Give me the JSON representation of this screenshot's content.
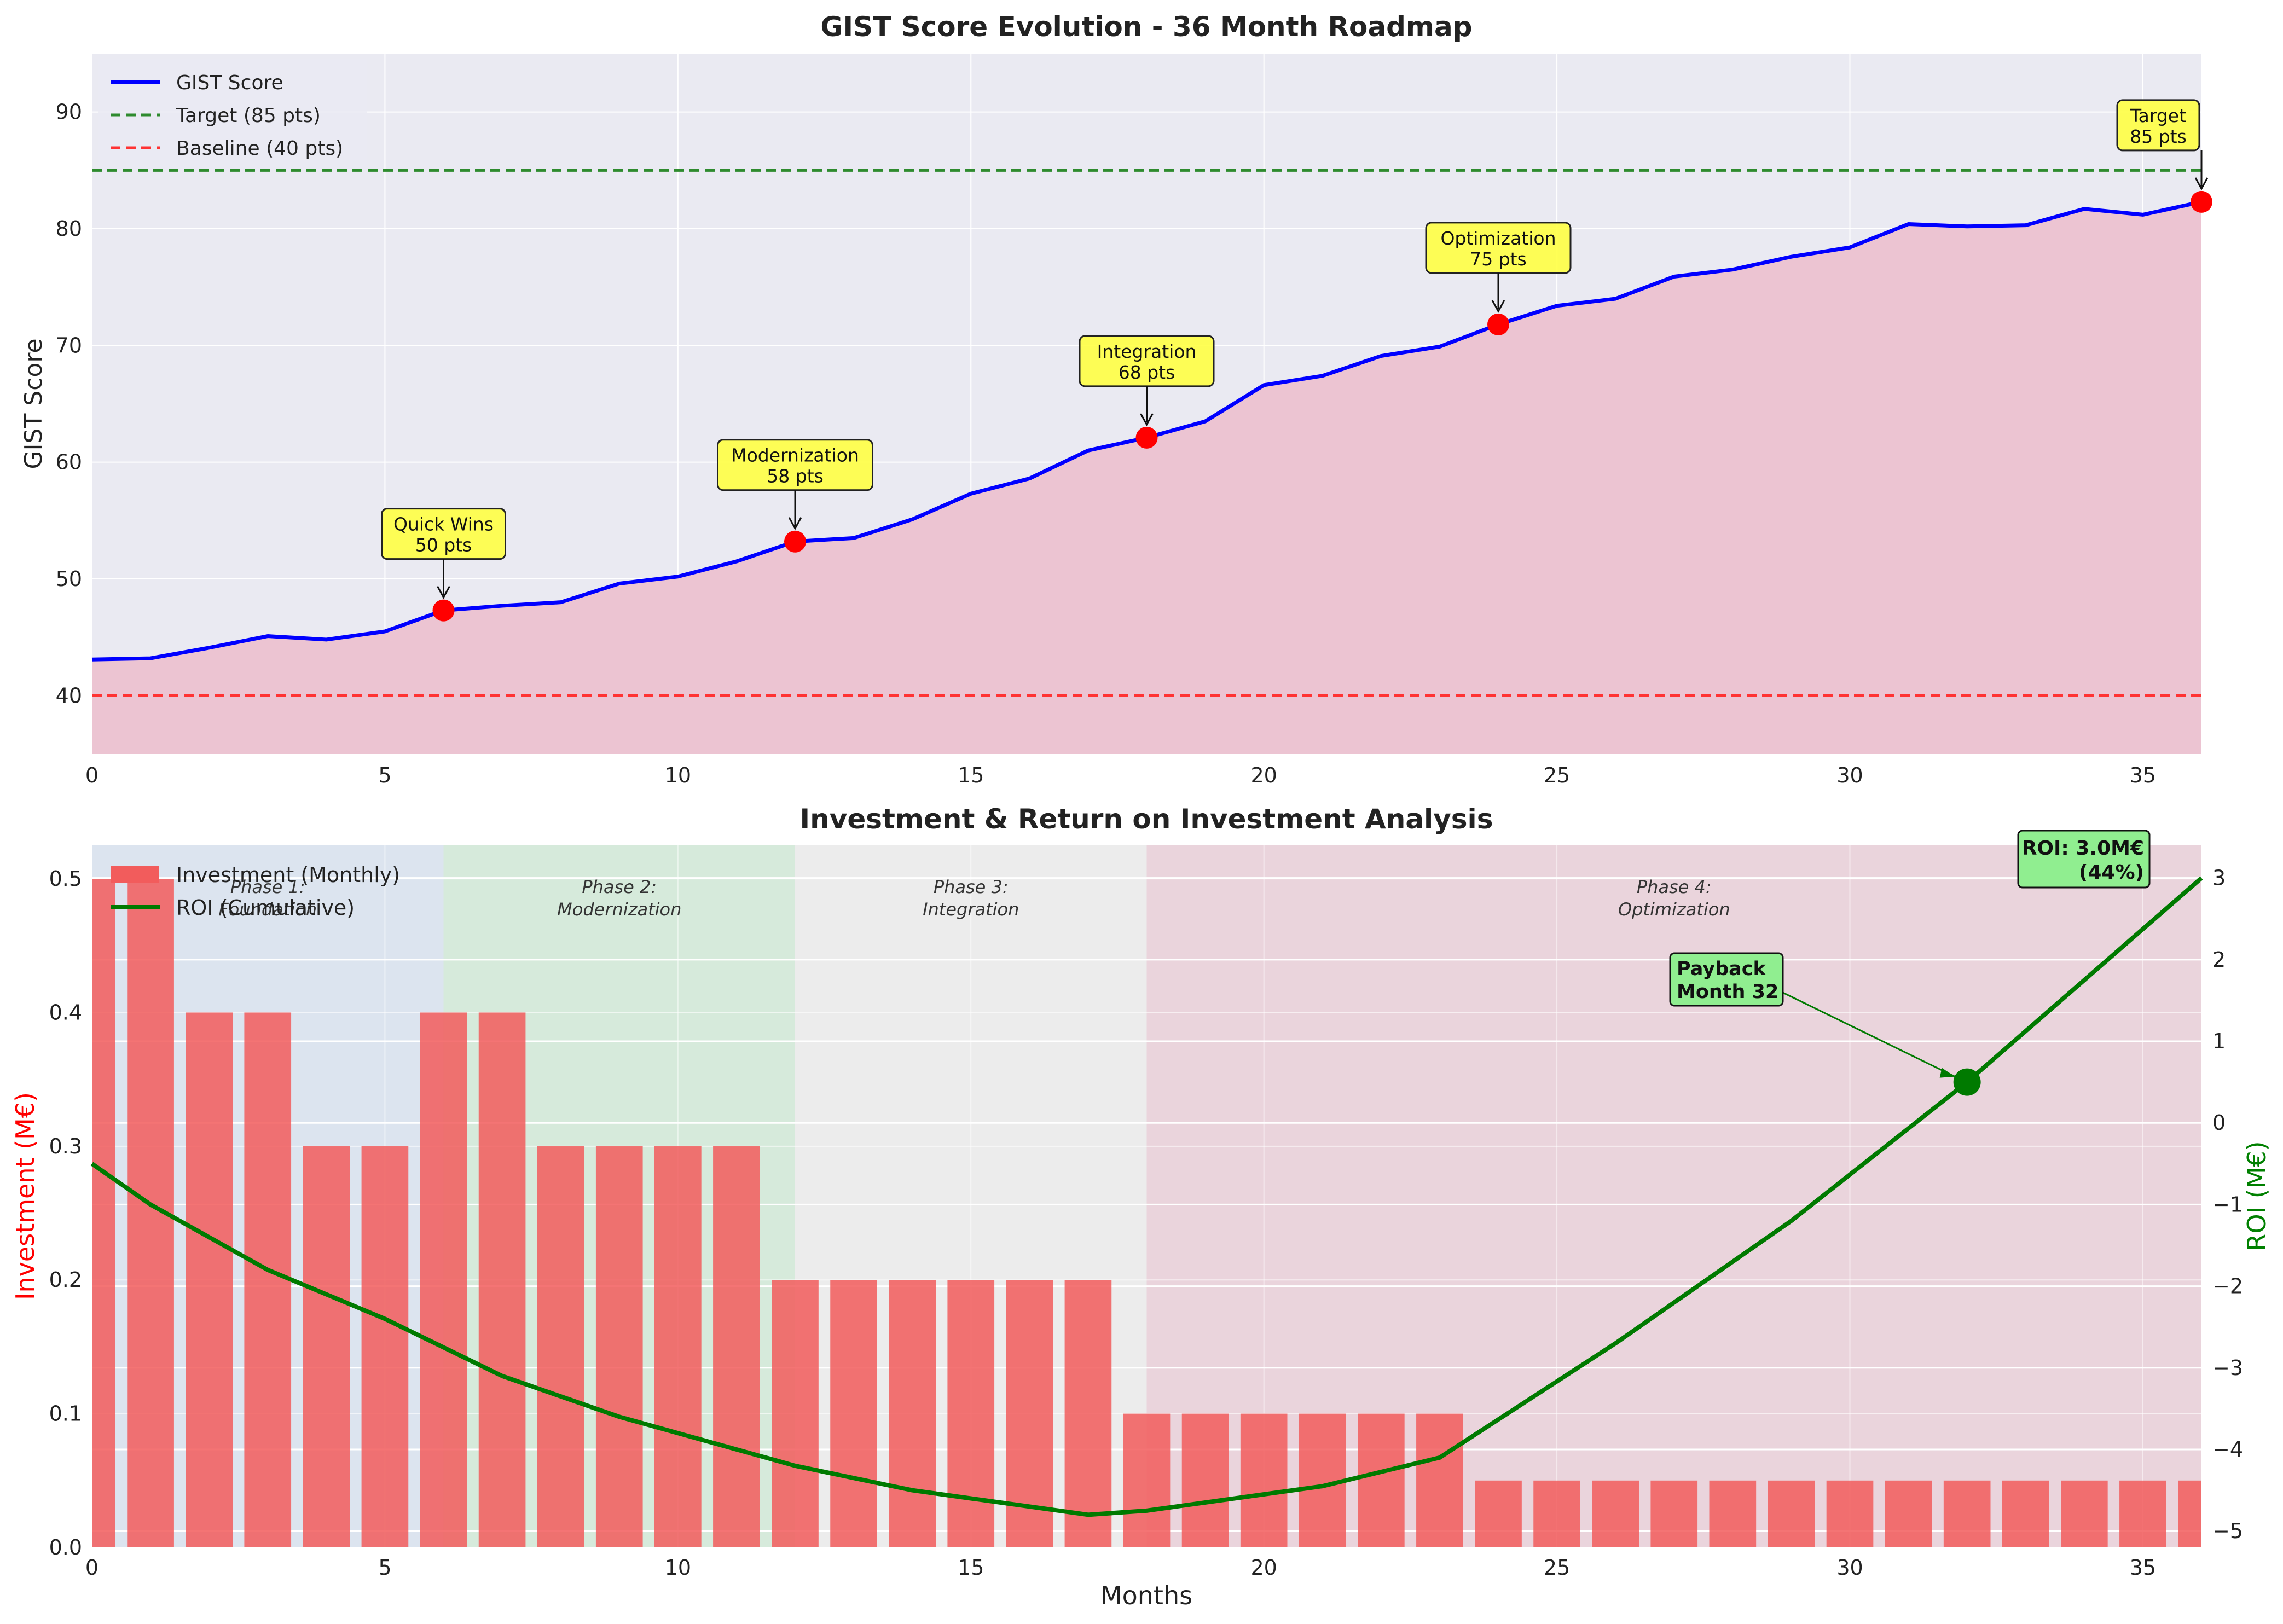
{
  "chart_data": [
    {
      "type": "line",
      "title": "GIST Score Evolution - 36 Month Roadmap",
      "xlabel": "",
      "ylabel": "GIST Score",
      "xlim": [
        0,
        36
      ],
      "ylim": [
        35,
        95
      ],
      "x_ticks": [
        "0",
        "5",
        "10",
        "15",
        "20",
        "25",
        "30",
        "35"
      ],
      "y_ticks": [
        "40",
        "50",
        "60",
        "70",
        "80",
        "90"
      ],
      "grid": true,
      "legend_position": "top-left",
      "x": [
        0,
        1,
        2,
        3,
        4,
        5,
        6,
        7,
        8,
        9,
        10,
        11,
        12,
        13,
        14,
        15,
        16,
        17,
        18,
        19,
        20,
        21,
        22,
        23,
        24,
        25,
        26,
        27,
        28,
        29,
        30,
        31,
        32,
        33,
        34,
        35,
        36
      ],
      "series": [
        {
          "name": "GIST Score",
          "color": "#0000ff",
          "values": [
            43.1,
            43.2,
            44.1,
            45.1,
            44.8,
            45.5,
            47.3,
            47.7,
            48.0,
            49.6,
            50.2,
            51.5,
            53.2,
            53.5,
            55.1,
            57.3,
            58.6,
            61.0,
            62.1,
            63.5,
            66.6,
            67.4,
            69.1,
            69.9,
            71.8,
            73.4,
            74.0,
            75.9,
            76.5,
            77.6,
            78.4,
            80.4,
            80.2,
            80.3,
            81.7,
            81.2,
            82.3
          ]
        }
      ],
      "reference_lines": [
        {
          "name": "Target (85 pts)",
          "value": 85,
          "color": "#2e8b2e"
        },
        {
          "name": "Baseline (40 pts)",
          "value": 40,
          "color": "#ff3333"
        }
      ],
      "fill_color": "#ecc4d2",
      "marker_color": "#ff0000",
      "milestones": [
        {
          "x": 6,
          "y": 47.3,
          "line1": "Quick Wins",
          "line2": "50 pts"
        },
        {
          "x": 12,
          "y": 53.2,
          "line1": "Modernization",
          "line2": "58 pts"
        },
        {
          "x": 18,
          "y": 62.1,
          "line1": "Integration",
          "line2": "68 pts"
        },
        {
          "x": 24,
          "y": 71.8,
          "line1": "Optimization",
          "line2": "75 pts"
        },
        {
          "x": 36,
          "y": 82.3,
          "line1": "Target",
          "line2": "85 pts"
        }
      ]
    },
    {
      "type": "bar",
      "title": "Investment & Return on Investment Analysis",
      "xlabel": "Months",
      "ylabel": "Investment (M€)",
      "y2label": "ROI (M€)",
      "xlim": [
        0,
        36
      ],
      "ylim": [
        0,
        0.525
      ],
      "y2lim": [
        -5.2,
        3.4
      ],
      "x_ticks": [
        "0",
        "5",
        "10",
        "15",
        "20",
        "25",
        "30",
        "35"
      ],
      "y_ticks": [
        "0.0",
        "0.1",
        "0.2",
        "0.3",
        "0.4",
        "0.5"
      ],
      "y2_ticks": [
        "−5",
        "−4",
        "−3",
        "−2",
        "−1",
        "0",
        "1",
        "2",
        "3"
      ],
      "grid": true,
      "legend_position": "top-left",
      "x": [
        0,
        1,
        2,
        3,
        4,
        5,
        6,
        7,
        8,
        9,
        10,
        11,
        12,
        13,
        14,
        15,
        16,
        17,
        18,
        19,
        20,
        21,
        22,
        23,
        24,
        25,
        26,
        27,
        28,
        29,
        30,
        31,
        32,
        33,
        34,
        35,
        36
      ],
      "series": [
        {
          "name": "Investment (Monthly)",
          "color": "#f25c5c",
          "values": [
            0.5,
            0.5,
            0.4,
            0.4,
            0.3,
            0.3,
            0.4,
            0.4,
            0.3,
            0.3,
            0.3,
            0.3,
            0.2,
            0.2,
            0.2,
            0.2,
            0.2,
            0.2,
            0.1,
            0.1,
            0.1,
            0.1,
            0.1,
            0.1,
            0.05,
            0.05,
            0.05,
            0.05,
            0.05,
            0.05,
            0.05,
            0.05,
            0.05,
            0.05,
            0.05,
            0.05,
            0.05
          ]
        },
        {
          "name": "ROI (Cumulative)",
          "color": "#007a00",
          "axis": "right",
          "x": [
            0,
            1,
            3,
            5,
            7,
            9,
            12,
            14,
            17,
            18,
            21,
            23,
            26,
            29,
            32,
            36
          ],
          "values": [
            -0.5,
            -1.0,
            -1.8,
            -2.4,
            -3.1,
            -3.6,
            -4.2,
            -4.5,
            -4.8,
            -4.75,
            -4.45,
            -4.1,
            -2.7,
            -1.2,
            0.5,
            3.0
          ]
        }
      ],
      "phases": [
        {
          "start": 0,
          "end": 6,
          "line1": "Phase 1:",
          "line2": "Foundation",
          "color": "#dce4ef"
        },
        {
          "start": 6,
          "end": 12,
          "line1": "Phase 2:",
          "line2": "Modernization",
          "color": "#d6eadb"
        },
        {
          "start": 12,
          "end": 18,
          "line1": "Phase 3:",
          "line2": "Integration",
          "color": "#ececec"
        },
        {
          "start": 18,
          "end": 36,
          "line1": "Phase 4:",
          "line2": "Optimization",
          "color": "#ead4dc"
        }
      ],
      "payback": {
        "x": 32,
        "y": 0.5,
        "line1": "Payback",
        "line2": "Month 32"
      },
      "roi_box": {
        "line1": "ROI: 3.0M€",
        "line2": "(44%)"
      }
    }
  ]
}
